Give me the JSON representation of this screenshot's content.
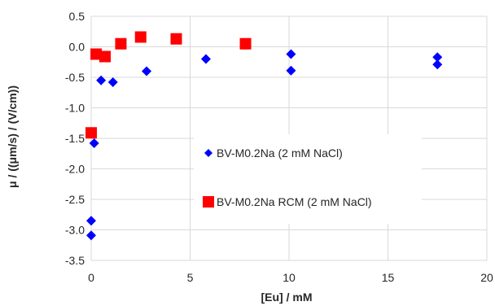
{
  "chart_data": {
    "type": "scatter",
    "xlabel": "[Eu] / mM",
    "ylabel": "μ / ((μm/s) / (V/cm))",
    "xlim": [
      0,
      20
    ],
    "ylim": [
      -3.5,
      0.5
    ],
    "x_ticks": [
      0,
      5,
      10,
      15,
      20
    ],
    "y_ticks": [
      0.5,
      0.0,
      -0.5,
      -1.0,
      -1.5,
      -2.0,
      -2.5,
      -3.0,
      -3.5
    ],
    "y_tick_labels": [
      "0.5",
      "0.0",
      "-0.5",
      "-1.0",
      "-1.5",
      "-2.0",
      "-2.5",
      "-3.0",
      "-3.5"
    ],
    "x_tick_labels": [
      "0",
      "5",
      "10",
      "15",
      "20"
    ],
    "grid": true,
    "legend_placement": "center-right",
    "series": [
      {
        "name": "BV-M0.2Na (2 mM NaCl)",
        "marker": "diamond",
        "color": "#0000ff",
        "points": [
          {
            "x": 0.0,
            "y": -2.85
          },
          {
            "x": 0.0,
            "y": -3.09
          },
          {
            "x": 0.15,
            "y": -1.58
          },
          {
            "x": 0.5,
            "y": -0.55
          },
          {
            "x": 1.1,
            "y": -0.58
          },
          {
            "x": 2.8,
            "y": -0.4
          },
          {
            "x": 5.8,
            "y": -0.2
          },
          {
            "x": 10.1,
            "y": -0.12
          },
          {
            "x": 10.1,
            "y": -0.39
          },
          {
            "x": 17.5,
            "y": -0.17
          },
          {
            "x": 17.5,
            "y": -0.29
          }
        ]
      },
      {
        "name": "BV-M0.2Na RCM (2 mM NaCl)",
        "marker": "square",
        "color": "#ff0000",
        "points": [
          {
            "x": 0.0,
            "y": -1.41
          },
          {
            "x": 0.25,
            "y": -0.12
          },
          {
            "x": 0.7,
            "y": -0.16
          },
          {
            "x": 1.5,
            "y": 0.05
          },
          {
            "x": 2.5,
            "y": 0.16
          },
          {
            "x": 4.3,
            "y": 0.13
          },
          {
            "x": 7.8,
            "y": 0.05
          }
        ]
      }
    ]
  }
}
